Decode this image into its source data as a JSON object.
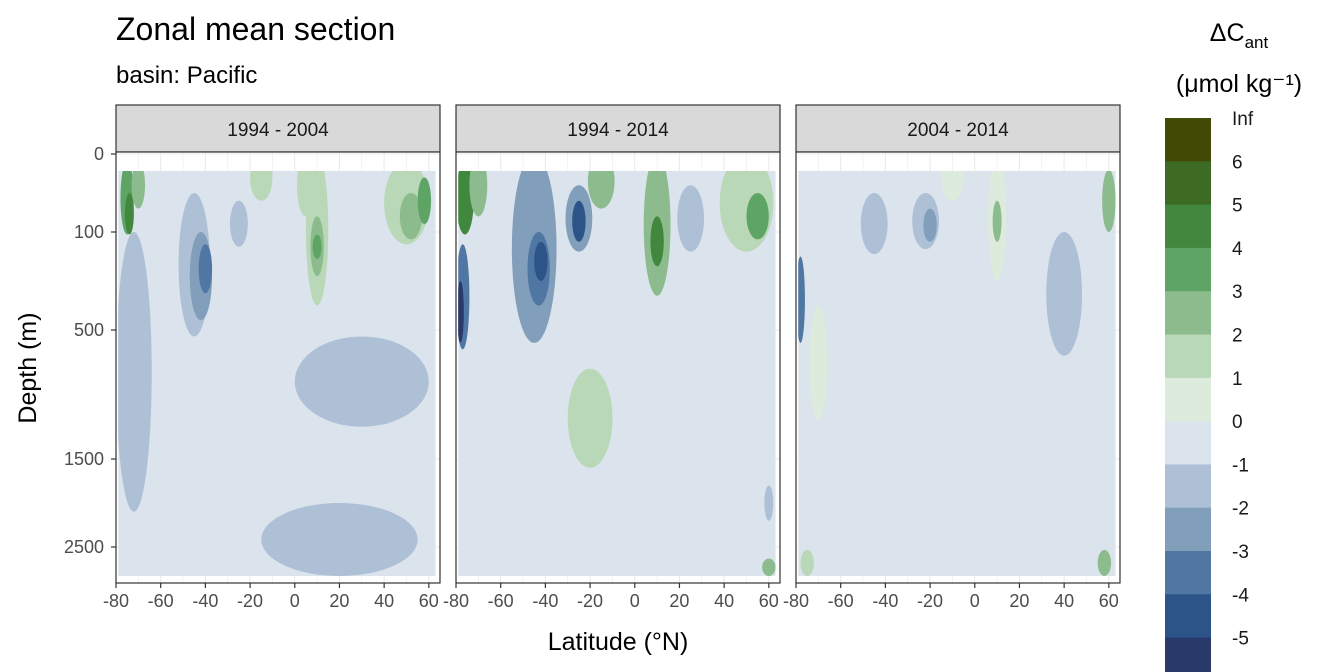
{
  "chart_data": {
    "type": "heatmap",
    "title": "Zonal mean section",
    "subtitle": "basin: Pacific",
    "xlabel": "Latitude (°N)",
    "ylabel": "Depth (m)",
    "xlim": [
      -80,
      65
    ],
    "x_ticks": [
      "-80",
      "-60",
      "-40",
      "-20",
      "0",
      "20",
      "40",
      "60"
    ],
    "x_tick_values": [
      -80,
      -60,
      -40,
      -20,
      0,
      20,
      40,
      60
    ],
    "y_ticks": [
      "0",
      "100",
      "500",
      "1500",
      "2500"
    ],
    "y_tick_values": [
      0,
      100,
      500,
      1500,
      2500
    ],
    "legend": {
      "title_main": "ΔC",
      "title_sub": "ant",
      "units": "(μmol kg⁻¹)",
      "labels": [
        "Inf",
        "6",
        "5",
        "4",
        "3",
        "2",
        "1",
        "0",
        "-1",
        "-2",
        "-3",
        "-4",
        "-5"
      ],
      "colors": [
        "#434a05",
        "#3e6b24",
        "#41873e",
        "#5ea565",
        "#8cbc8e",
        "#b8d8b7",
        "#dcebdb",
        "#dbe3ec",
        "#aec0d6",
        "#819eba",
        "#5077a3",
        "#2d5489",
        "#293a6a"
      ]
    },
    "panels": [
      {
        "label": "1994 - 2004",
        "blobs": [
          {
            "lat": -75,
            "depth": 60,
            "rlat": 3,
            "rdepth": 50,
            "level": 4
          },
          {
            "lat": -74,
            "depth": 80,
            "rlat": 2,
            "rdepth": 30,
            "level": 5
          },
          {
            "lat": -70,
            "depth": 40,
            "rlat": 3,
            "rdepth": 30,
            "level": 3
          },
          {
            "lat": -45,
            "depth": 300,
            "rlat": 7,
            "rdepth": 250,
            "level": -1
          },
          {
            "lat": -42,
            "depth": 280,
            "rlat": 5,
            "rdepth": 180,
            "level": -2
          },
          {
            "lat": -40,
            "depth": 250,
            "rlat": 3,
            "rdepth": 100,
            "level": -3
          },
          {
            "lat": -25,
            "depth": 110,
            "rlat": 4,
            "rdepth": 50,
            "level": -1
          },
          {
            "lat": -15,
            "depth": 30,
            "rlat": 5,
            "rdepth": 30,
            "level": 2
          },
          {
            "lat": 10,
            "depth": 200,
            "rlat": 5,
            "rdepth": 200,
            "level": 2
          },
          {
            "lat": 10,
            "depth": 180,
            "rlat": 3,
            "rdepth": 100,
            "level": 3
          },
          {
            "lat": 10,
            "depth": 160,
            "rlat": 2,
            "rdepth": 50,
            "level": 4
          },
          {
            "lat": 5,
            "depth": 40,
            "rlat": 4,
            "rdepth": 40,
            "level": 2
          },
          {
            "lat": 50,
            "depth": 80,
            "rlat": 10,
            "rdepth": 70,
            "level": 2
          },
          {
            "lat": 52,
            "depth": 90,
            "rlat": 5,
            "rdepth": 40,
            "level": 3
          },
          {
            "lat": 58,
            "depth": 60,
            "rlat": 3,
            "rdepth": 30,
            "level": 4
          },
          {
            "lat": -72,
            "depth": 1100,
            "rlat": 8,
            "rdepth": 1000,
            "level": -1
          },
          {
            "lat": 30,
            "depth": 900,
            "rlat": 30,
            "rdepth": 350,
            "level": -1
          },
          {
            "lat": 20,
            "depth": 2500,
            "rlat": 35,
            "rdepth": 500,
            "level": -1
          }
        ]
      },
      {
        "label": "1994 - 2014",
        "blobs": [
          {
            "lat": -76,
            "depth": 60,
            "rlat": 4,
            "rdepth": 50,
            "level": 5
          },
          {
            "lat": -70,
            "depth": 40,
            "rlat": 4,
            "rdepth": 40,
            "level": 3
          },
          {
            "lat": -77,
            "depth": 400,
            "rlat": 3,
            "rdepth": 250,
            "level": -3
          },
          {
            "lat": -78,
            "depth": 450,
            "rlat": 1.5,
            "rdepth": 150,
            "level": -5
          },
          {
            "lat": -45,
            "depth": 300,
            "rlat": 10,
            "rdepth": 300,
            "level": -2
          },
          {
            "lat": -43,
            "depth": 250,
            "rlat": 5,
            "rdepth": 150,
            "level": -3
          },
          {
            "lat": -42,
            "depth": 220,
            "rlat": 3,
            "rdepth": 80,
            "level": -4
          },
          {
            "lat": -25,
            "depth": 110,
            "rlat": 6,
            "rdepth": 70,
            "level": -2
          },
          {
            "lat": -25,
            "depth": 100,
            "rlat": 3,
            "rdepth": 40,
            "level": -4
          },
          {
            "lat": -15,
            "depth": 30,
            "rlat": 6,
            "rdepth": 40,
            "level": 3
          },
          {
            "lat": 10,
            "depth": 180,
            "rlat": 6,
            "rdepth": 180,
            "level": 3
          },
          {
            "lat": 10,
            "depth": 160,
            "rlat": 3,
            "rdepth": 80,
            "level": 5
          },
          {
            "lat": 25,
            "depth": 110,
            "rlat": 6,
            "rdepth": 70,
            "level": -1
          },
          {
            "lat": 50,
            "depth": 90,
            "rlat": 12,
            "rdepth": 90,
            "level": 2
          },
          {
            "lat": 55,
            "depth": 90,
            "rlat": 5,
            "rdepth": 40,
            "level": 4
          },
          {
            "lat": -20,
            "depth": 1200,
            "rlat": 10,
            "rdepth": 400,
            "level": 2
          },
          {
            "lat": 60,
            "depth": 2900,
            "rlat": 3,
            "rdepth": 200,
            "level": 3
          },
          {
            "lat": 60,
            "depth": 2000,
            "rlat": 2,
            "rdepth": 200,
            "level": -1
          }
        ]
      },
      {
        "label": "2004 - 2014",
        "blobs": [
          {
            "lat": -45,
            "depth": 120,
            "rlat": 6,
            "rdepth": 70,
            "level": -1
          },
          {
            "lat": -22,
            "depth": 110,
            "rlat": 6,
            "rdepth": 60,
            "level": -1
          },
          {
            "lat": -20,
            "depth": 105,
            "rlat": 3,
            "rdepth": 35,
            "level": -2
          },
          {
            "lat": -10,
            "depth": 30,
            "rlat": 5,
            "rdepth": 30,
            "level": 1
          },
          {
            "lat": 10,
            "depth": 150,
            "rlat": 4,
            "rdepth": 150,
            "level": 1
          },
          {
            "lat": 10,
            "depth": 100,
            "rlat": 2,
            "rdepth": 40,
            "level": 3
          },
          {
            "lat": 60,
            "depth": 60,
            "rlat": 3,
            "rdepth": 40,
            "level": 3
          },
          {
            "lat": -78,
            "depth": 400,
            "rlat": 2,
            "rdepth": 200,
            "level": -3
          },
          {
            "lat": -70,
            "depth": 800,
            "rlat": 4,
            "rdepth": 400,
            "level": 1
          },
          {
            "lat": -75,
            "depth": 2800,
            "rlat": 3,
            "rdepth": 250,
            "level": 2
          },
          {
            "lat": 58,
            "depth": 2800,
            "rlat": 3,
            "rdepth": 250,
            "level": 3
          },
          {
            "lat": 40,
            "depth": 400,
            "rlat": 8,
            "rdepth": 300,
            "level": -1
          }
        ]
      }
    ]
  }
}
